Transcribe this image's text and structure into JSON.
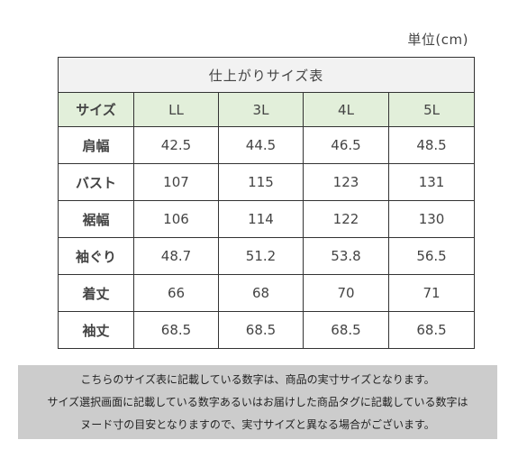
{
  "unit_label": "単位(cm)",
  "table": {
    "title": "仕上がりサイズ表",
    "header_label": "サイズ",
    "sizes": [
      "LL",
      "3L",
      "4L",
      "5L"
    ],
    "rows": [
      {
        "label": "肩幅",
        "values": [
          "42.5",
          "44.5",
          "46.5",
          "48.5"
        ]
      },
      {
        "label": "バスト",
        "values": [
          "107",
          "115",
          "123",
          "131"
        ]
      },
      {
        "label": "裾幅",
        "values": [
          "106",
          "114",
          "122",
          "130"
        ]
      },
      {
        "label": "袖ぐり",
        "values": [
          "48.7",
          "51.2",
          "53.8",
          "56.5"
        ]
      },
      {
        "label": "着丈",
        "values": [
          "66",
          "68",
          "70",
          "71"
        ]
      },
      {
        "label": "袖丈",
        "values": [
          "68.5",
          "68.5",
          "68.5",
          "68.5"
        ]
      }
    ]
  },
  "note": {
    "lines": [
      "こちらのサイズ表に記載している数字は、商品の実寸サイズとなります。",
      "サイズ選択画面に記載している数字あるいはお届けした商品タグに記載している数字は",
      "ヌード寸の目安となりますので、実寸サイズと異なる場合がございます。"
    ]
  },
  "colors": {
    "header_bg": "#e2efda",
    "title_bg": "#f2f2f2",
    "note_bg": "#cccccc",
    "border": "#333333"
  }
}
